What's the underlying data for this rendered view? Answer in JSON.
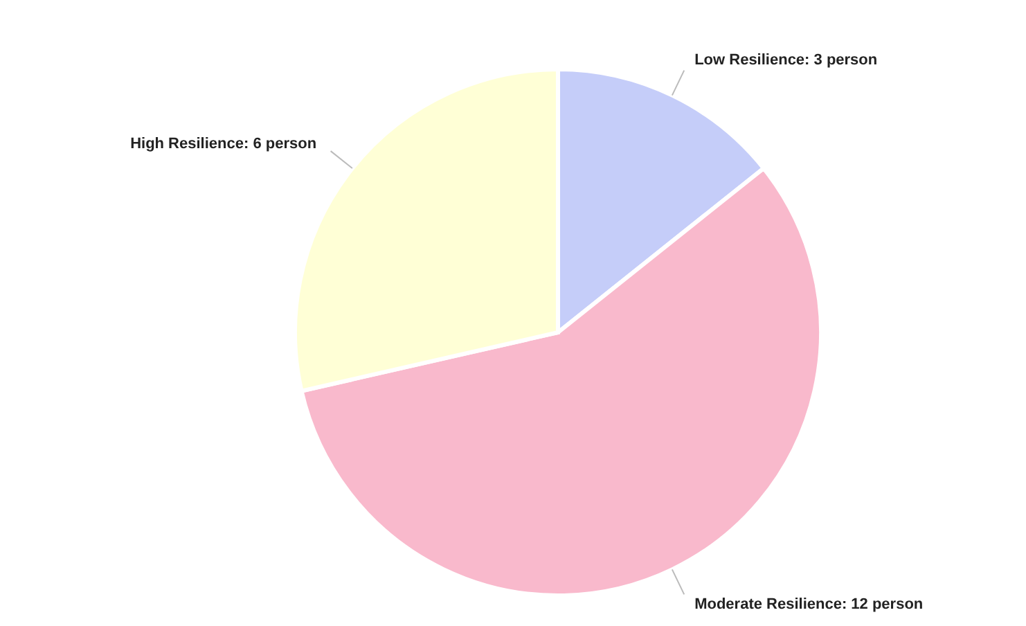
{
  "chart_data": {
    "type": "pie",
    "categories": [
      "Low Resilience: 3 person",
      "Moderate Resilience: 12 person",
      "High Resilience: 6 person"
    ],
    "values": [
      3,
      12,
      6
    ],
    "colors": [
      "#c5cdf9",
      "#f9b9cc",
      "#ffffd6"
    ]
  }
}
